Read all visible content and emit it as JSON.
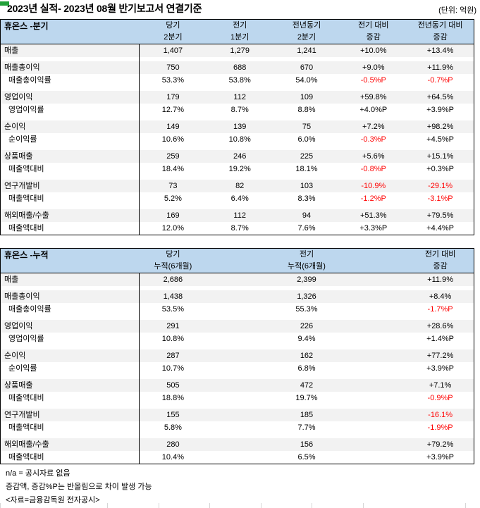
{
  "title": "2023년 실적- 2023년 08월 반기보고서 연결기준",
  "unit_label": "(단위: 억원)",
  "colors": {
    "header_bg": "#BDD7EE",
    "shaded_row_bg": "#F2F2F2",
    "negative_text": "#FF0000",
    "corner_marker_green": "#21A038",
    "border": "#000000"
  },
  "tables": [
    {
      "title": "휴온스 -분기",
      "headers": [
        {
          "top": "당기",
          "bottom": "2분기"
        },
        {
          "top": "전기",
          "bottom": "1분기"
        },
        {
          "top": "전년동기",
          "bottom": "2분기"
        },
        {
          "top": "전기 대비",
          "bottom": "증감"
        },
        {
          "top": "전년동기 대비",
          "bottom": "증감"
        }
      ],
      "rows": [
        {
          "kind": "main",
          "label": "매출",
          "values": [
            "1,407",
            "1,279",
            "1,241",
            "+10.0%",
            "+13.4%"
          ]
        },
        {
          "kind": "spacer"
        },
        {
          "kind": "main",
          "label": "매출총이익",
          "values": [
            "750",
            "688",
            "670",
            "+9.0%",
            "+11.9%"
          ]
        },
        {
          "kind": "sub",
          "label": "매출총이익률",
          "values": [
            "53.3%",
            "53.8%",
            "54.0%",
            "-0.5%P",
            "-0.7%P"
          ]
        },
        {
          "kind": "spacer"
        },
        {
          "kind": "main",
          "label": "영업이익",
          "values": [
            "179",
            "112",
            "109",
            "+59.8%",
            "+64.5%"
          ]
        },
        {
          "kind": "sub",
          "label": "영업이익률",
          "values": [
            "12.7%",
            "8.7%",
            "8.8%",
            "+4.0%P",
            "+3.9%P"
          ]
        },
        {
          "kind": "spacer"
        },
        {
          "kind": "main",
          "label": "순이익",
          "values": [
            "149",
            "139",
            "75",
            "+7.2%",
            "+98.2%"
          ]
        },
        {
          "kind": "sub",
          "label": "순이익률",
          "values": [
            "10.6%",
            "10.8%",
            "6.0%",
            "-0.3%P",
            "+4.5%P"
          ]
        },
        {
          "kind": "spacer"
        },
        {
          "kind": "main",
          "label": "상품매출",
          "values": [
            "259",
            "246",
            "225",
            "+5.6%",
            "+15.1%"
          ]
        },
        {
          "kind": "sub",
          "label": "매출액대비",
          "values": [
            "18.4%",
            "19.2%",
            "18.1%",
            "-0.8%P",
            "+0.3%P"
          ]
        },
        {
          "kind": "spacer"
        },
        {
          "kind": "main",
          "label": "연구개발비",
          "values": [
            "73",
            "82",
            "103",
            "-10.9%",
            "-29.1%"
          ]
        },
        {
          "kind": "sub",
          "label": "매출액대비",
          "values": [
            "5.2%",
            "6.4%",
            "8.3%",
            "-1.2%P",
            "-3.1%P"
          ]
        },
        {
          "kind": "spacer"
        },
        {
          "kind": "main",
          "label": "해외매출/수출",
          "values": [
            "169",
            "112",
            "94",
            "+51.3%",
            "+79.5%"
          ]
        },
        {
          "kind": "sub",
          "label": "매출액대비",
          "values": [
            "12.0%",
            "8.7%",
            "7.6%",
            "+3.3%P",
            "+4.4%P"
          ]
        }
      ]
    },
    {
      "title": "휴온스 -누적",
      "headers": [
        {
          "top": "당기",
          "bottom": "누적(6개월)"
        },
        {
          "top": "",
          "bottom": ""
        },
        {
          "top": "전기",
          "bottom": "누적(6개월)"
        },
        {
          "top": "",
          "bottom": ""
        },
        {
          "top": "전기 대비",
          "bottom": "증감"
        }
      ],
      "rows": [
        {
          "kind": "main",
          "label": "매출",
          "values": [
            "2,686",
            "",
            "2,399",
            "",
            "+11.9%"
          ]
        },
        {
          "kind": "spacer"
        },
        {
          "kind": "main",
          "label": "매출총이익",
          "values": [
            "1,438",
            "",
            "1,326",
            "",
            "+8.4%"
          ]
        },
        {
          "kind": "sub",
          "label": "매출총이익률",
          "values": [
            "53.5%",
            "",
            "55.3%",
            "",
            "-1.7%P"
          ]
        },
        {
          "kind": "spacer"
        },
        {
          "kind": "main",
          "label": "영업이익",
          "values": [
            "291",
            "",
            "226",
            "",
            "+28.6%"
          ]
        },
        {
          "kind": "sub",
          "label": "영업이익률",
          "values": [
            "10.8%",
            "",
            "9.4%",
            "",
            "+1.4%P"
          ]
        },
        {
          "kind": "spacer"
        },
        {
          "kind": "main",
          "label": "순이익",
          "values": [
            "287",
            "",
            "162",
            "",
            "+77.2%"
          ]
        },
        {
          "kind": "sub",
          "label": "순이익률",
          "values": [
            "10.7%",
            "",
            "6.8%",
            "",
            "+3.9%P"
          ]
        },
        {
          "kind": "spacer"
        },
        {
          "kind": "main",
          "label": "상품매출",
          "values": [
            "505",
            "",
            "472",
            "",
            "+7.1%"
          ]
        },
        {
          "kind": "sub",
          "label": "매출액대비",
          "values": [
            "18.8%",
            "",
            "19.7%",
            "",
            "-0.9%P"
          ]
        },
        {
          "kind": "spacer"
        },
        {
          "kind": "main",
          "label": "연구개발비",
          "values": [
            "155",
            "",
            "185",
            "",
            "-16.1%"
          ]
        },
        {
          "kind": "sub",
          "label": "매출액대비",
          "values": [
            "5.8%",
            "",
            "7.7%",
            "",
            "-1.9%P"
          ]
        },
        {
          "kind": "spacer"
        },
        {
          "kind": "main",
          "label": "해외매출/수출",
          "values": [
            "280",
            "",
            "156",
            "",
            "+79.2%"
          ]
        },
        {
          "kind": "sub",
          "label": "매출액대비",
          "values": [
            "10.4%",
            "",
            "6.5%",
            "",
            "+3.9%P"
          ]
        }
      ]
    }
  ],
  "notes": [
    "n/a = 공시자료 없음",
    "증감액, 증감%P는 반올림으로 차이 발생 가능",
    "<자료=금융감독원 전자공시>"
  ]
}
